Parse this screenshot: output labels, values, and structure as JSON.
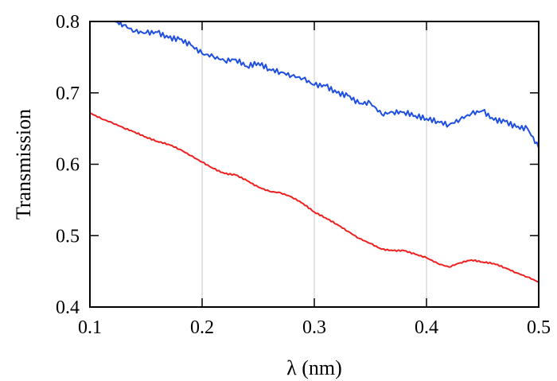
{
  "chart_data": {
    "type": "line",
    "xlabel": "λ (nm)",
    "ylabel": "Transmission",
    "xlim": [
      0.1,
      0.5
    ],
    "ylim": [
      0.4,
      0.8
    ],
    "x_ticks": [
      0.1,
      0.2,
      0.3,
      0.4,
      0.5
    ],
    "x_tick_labels": [
      "0.1",
      "0.2",
      "0.3",
      "0.4",
      "0.5"
    ],
    "y_ticks": [
      0.4,
      0.5,
      0.6,
      0.7,
      0.8
    ],
    "y_tick_labels": [
      "0.4",
      "0.5",
      "0.6",
      "0.7",
      "0.8"
    ],
    "vertical_gridlines_at": [
      0.2,
      0.3,
      0.4
    ],
    "series": [
      {
        "color": "#1f4fe0",
        "x": [
          0.122,
          0.13,
          0.14,
          0.15,
          0.16,
          0.17,
          0.18,
          0.19,
          0.2,
          0.21,
          0.22,
          0.23,
          0.24,
          0.25,
          0.26,
          0.27,
          0.28,
          0.29,
          0.3,
          0.31,
          0.32,
          0.33,
          0.34,
          0.35,
          0.36,
          0.37,
          0.38,
          0.39,
          0.4,
          0.41,
          0.42,
          0.43,
          0.44,
          0.45,
          0.46,
          0.47,
          0.48,
          0.49,
          0.5
        ],
        "y": [
          0.8,
          0.795,
          0.786,
          0.784,
          0.785,
          0.777,
          0.775,
          0.767,
          0.755,
          0.751,
          0.745,
          0.747,
          0.737,
          0.742,
          0.733,
          0.729,
          0.724,
          0.72,
          0.711,
          0.71,
          0.7,
          0.696,
          0.685,
          0.686,
          0.67,
          0.673,
          0.673,
          0.668,
          0.664,
          0.66,
          0.655,
          0.663,
          0.671,
          0.675,
          0.662,
          0.66,
          0.652,
          0.65,
          0.623
        ]
      },
      {
        "color": "#ee2020",
        "x": [
          0.1,
          0.11,
          0.12,
          0.13,
          0.14,
          0.15,
          0.16,
          0.17,
          0.18,
          0.19,
          0.2,
          0.21,
          0.22,
          0.23,
          0.24,
          0.25,
          0.26,
          0.27,
          0.28,
          0.29,
          0.3,
          0.31,
          0.32,
          0.33,
          0.34,
          0.35,
          0.36,
          0.37,
          0.38,
          0.39,
          0.4,
          0.41,
          0.42,
          0.43,
          0.44,
          0.45,
          0.46,
          0.47,
          0.48,
          0.49,
          0.5
        ],
        "y": [
          0.672,
          0.664,
          0.658,
          0.651,
          0.645,
          0.638,
          0.632,
          0.628,
          0.621,
          0.612,
          0.603,
          0.594,
          0.587,
          0.585,
          0.577,
          0.568,
          0.562,
          0.56,
          0.554,
          0.545,
          0.533,
          0.525,
          0.516,
          0.506,
          0.496,
          0.489,
          0.481,
          0.479,
          0.479,
          0.474,
          0.469,
          0.461,
          0.456,
          0.462,
          0.466,
          0.463,
          0.461,
          0.455,
          0.448,
          0.442,
          0.435
        ]
      }
    ]
  }
}
